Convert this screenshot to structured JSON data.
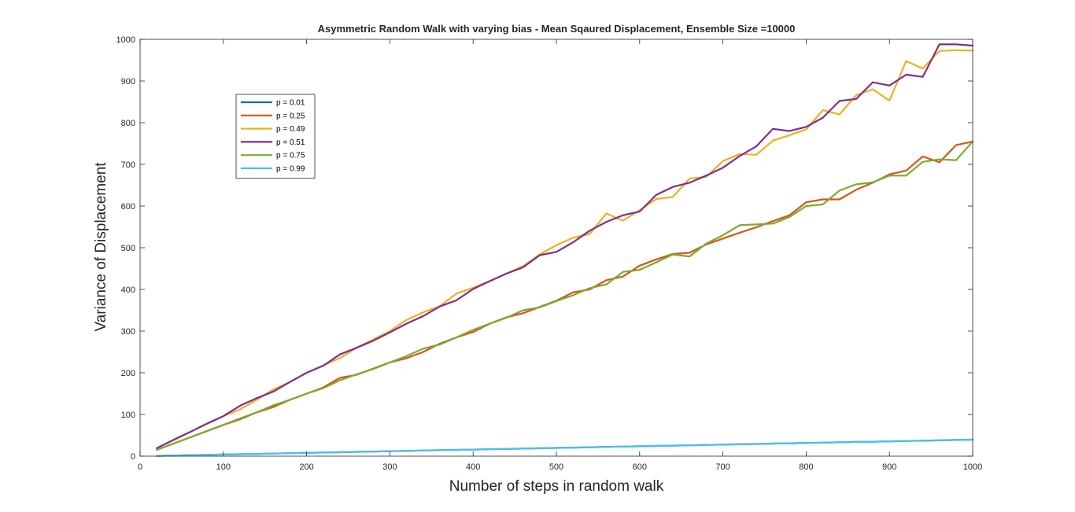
{
  "chart_data": {
    "type": "line",
    "title": "Asymmetric Random Walk with varying bias - Mean Sqaured Displacement,  Ensemble Size =10000",
    "xlabel": "Number of steps in random walk",
    "ylabel": "Variance of Displacement",
    "xlim": [
      0,
      1000
    ],
    "ylim": [
      0,
      1000
    ],
    "xticks": [
      0,
      100,
      200,
      300,
      400,
      500,
      600,
      700,
      800,
      900,
      1000
    ],
    "yticks": [
      0,
      100,
      200,
      300,
      400,
      500,
      600,
      700,
      800,
      900,
      1000
    ],
    "grid": false,
    "legend_position": "top-left",
    "x": [
      20,
      40,
      60,
      80,
      100,
      120,
      140,
      160,
      180,
      200,
      220,
      240,
      260,
      280,
      300,
      320,
      340,
      360,
      380,
      400,
      420,
      440,
      460,
      480,
      500,
      520,
      540,
      560,
      580,
      600,
      620,
      640,
      660,
      680,
      700,
      720,
      740,
      760,
      780,
      800,
      820,
      840,
      860,
      880,
      900,
      920,
      940,
      960,
      980,
      1000
    ],
    "series": [
      {
        "name": "p = 0.01",
        "color": "#0072BD",
        "values": [
          0.8,
          1.6,
          2.4,
          3.2,
          4,
          4.8,
          5.5,
          6.3,
          7.1,
          7.9,
          8.7,
          9.5,
          10.3,
          11.1,
          11.9,
          12.7,
          13.5,
          14.3,
          15,
          15.8,
          16.6,
          17.4,
          18.2,
          19,
          19.8,
          20.6,
          21.4,
          22.2,
          23,
          23.8,
          24.6,
          25.3,
          26.1,
          26.9,
          27.7,
          28.5,
          29.3,
          30.1,
          30.9,
          31.7,
          32.5,
          33.3,
          34.1,
          34.8,
          35.6,
          36.4,
          37.2,
          38,
          38.8,
          39.6
        ]
      },
      {
        "name": "p = 0.25",
        "color": "#D95319",
        "values": [
          15,
          30,
          45,
          60,
          75,
          90,
          105,
          118,
          135,
          150,
          165,
          188,
          195,
          210,
          225,
          235,
          250,
          270,
          285,
          298,
          318,
          333,
          343,
          358,
          373,
          393,
          400,
          422,
          431,
          457,
          472,
          485,
          488,
          508,
          522,
          536,
          549,
          564,
          578,
          609,
          616,
          616,
          639,
          656,
          676,
          685,
          719,
          705,
          746,
          755
        ]
      },
      {
        "name": "p = 0.49",
        "color": "#EDB120",
        "values": [
          19,
          38,
          58,
          77,
          96,
          112,
          135,
          160,
          178,
          200,
          218,
          235,
          260,
          280,
          300,
          327,
          345,
          360,
          390,
          404,
          420,
          438,
          456,
          484,
          506,
          524,
          533,
          582,
          565,
          590,
          617,
          622,
          666,
          670,
          708,
          725,
          723,
          757,
          770,
          784,
          830,
          820,
          866,
          880,
          853,
          948,
          930,
          972,
          974,
          973
        ]
      },
      {
        "name": "p = 0.51",
        "color": "#7E2F8E",
        "values": [
          19,
          39,
          58,
          78,
          96,
          121,
          139,
          155,
          178,
          200,
          217,
          244,
          260,
          277,
          297,
          318,
          336,
          359,
          374,
          401,
          420,
          438,
          453,
          482,
          490,
          513,
          541,
          562,
          578,
          587,
          627,
          646,
          656,
          673,
          692,
          720,
          743,
          785,
          780,
          790,
          812,
          852,
          857,
          897,
          889,
          915,
          910,
          988,
          988,
          985
        ]
      },
      {
        "name": "p = 0.75",
        "color": "#77AC30",
        "values": [
          15,
          30,
          45,
          60,
          75,
          88,
          105,
          122,
          135,
          150,
          163,
          182,
          196,
          209,
          225,
          240,
          258,
          268,
          285,
          303,
          318,
          332,
          350,
          357,
          372,
          386,
          403,
          412,
          442,
          447,
          465,
          484,
          479,
          510,
          530,
          554,
          556,
          558,
          574,
          600,
          604,
          637,
          652,
          657,
          673,
          673,
          706,
          712,
          710,
          755
        ]
      },
      {
        "name": "p = 0.99",
        "color": "#4DBEEE",
        "values": [
          0.8,
          1.6,
          2.4,
          3.2,
          4,
          4.8,
          5.5,
          6.3,
          7.1,
          7.9,
          8.7,
          9.5,
          10.3,
          11.1,
          11.9,
          12.7,
          13.5,
          14.3,
          15,
          15.8,
          16.6,
          17.4,
          18.2,
          19,
          19.8,
          20.6,
          21.4,
          22.2,
          23,
          23.8,
          24.6,
          25.3,
          26.1,
          26.9,
          27.7,
          28.5,
          29.3,
          30.1,
          30.9,
          31.7,
          32.5,
          33.3,
          34.1,
          34.8,
          35.6,
          36.4,
          37.2,
          38,
          38.8,
          39.6
        ]
      }
    ]
  }
}
